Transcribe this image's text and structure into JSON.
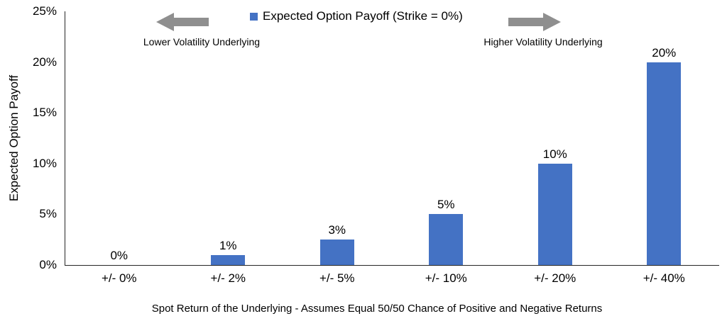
{
  "colors": {
    "bar": "#4472C4",
    "arrow": "#8F8F8F",
    "axis": "#262626",
    "text": "#000000"
  },
  "legend": {
    "label": "Expected Option Payoff (Strike = 0%)"
  },
  "annotations": {
    "left_caption": "Lower Volatility Underlying",
    "right_caption": "Higher Volatility Underlying"
  },
  "chart_data": {
    "type": "bar",
    "title": "Expected Option Payoff (Strike = 0%)",
    "categories": [
      "+/- 0%",
      "+/- 2%",
      "+/- 5%",
      "+/- 10%",
      "+/- 20%",
      "+/- 40%"
    ],
    "values": [
      0,
      1,
      2.5,
      5,
      10,
      20
    ],
    "value_labels": [
      "0%",
      "1%",
      "3%",
      "5%",
      "10%",
      "20%"
    ],
    "xlabel": "Spot Return of the Underlying - Assumes Equal 50/50 Chance of Positive and Negative Returns",
    "ylabel": "Expected Option Payoff",
    "ylim": [
      0,
      25
    ],
    "yticks": [
      0,
      5,
      10,
      15,
      20,
      25
    ],
    "ytick_labels": [
      "0%",
      "5%",
      "10%",
      "15%",
      "20%",
      "25%"
    ],
    "grid": false,
    "legend_position": "top-center",
    "annotations": [
      {
        "text": "Lower Volatility Underlying",
        "arrow": "left"
      },
      {
        "text": "Higher Volatility Underlying",
        "arrow": "right"
      }
    ]
  }
}
